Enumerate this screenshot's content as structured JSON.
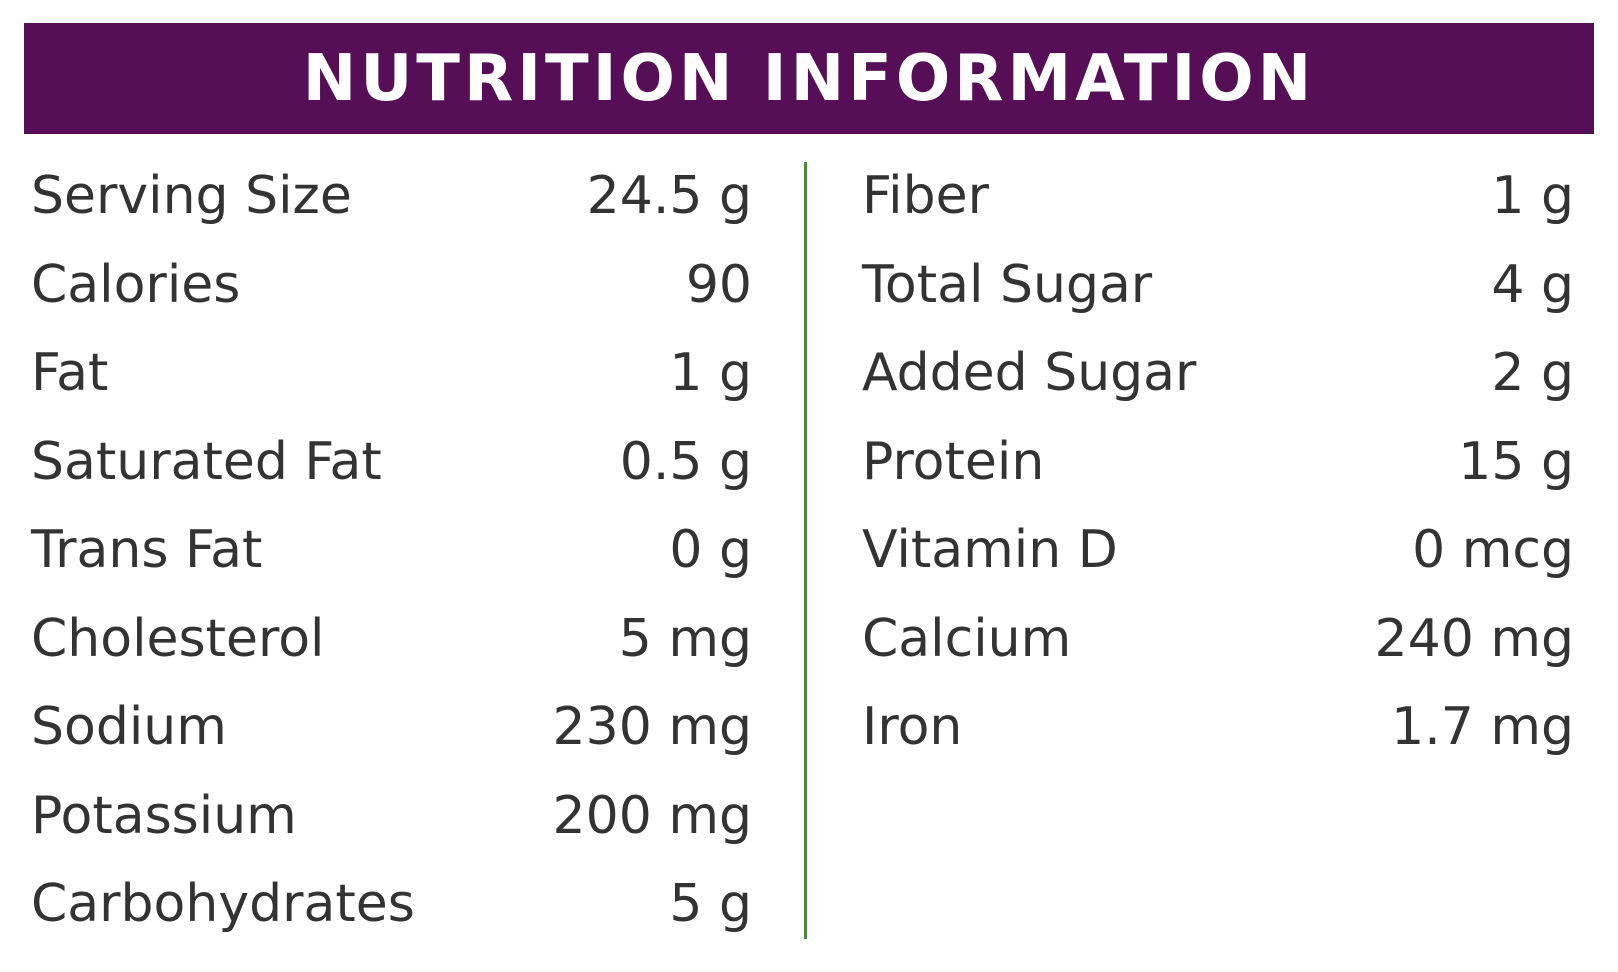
{
  "header": {
    "title": "NUTRITION INFORMATION"
  },
  "table": {
    "left": [
      [
        "Serving Size",
        "24.5 g"
      ],
      [
        "Calories",
        "90"
      ],
      [
        "Fat",
        "1 g"
      ],
      [
        "Saturated Fat",
        "0.5 g"
      ],
      [
        "Trans Fat",
        "0 g"
      ],
      [
        "Cholesterol",
        "5 mg"
      ],
      [
        "Sodium",
        "230 mg"
      ],
      [
        "Potassium",
        "200 mg"
      ],
      [
        "Carbohydrates",
        "5 g"
      ]
    ],
    "right": [
      [
        "Fiber",
        "1 g"
      ],
      [
        "Total Sugar",
        "4 g"
      ],
      [
        "Added Sugar",
        "2 g"
      ],
      [
        "Protein",
        "15 g"
      ],
      [
        "Vitamin D",
        "0 mcg"
      ],
      [
        "Calcium",
        "240 mg"
      ],
      [
        "Iron",
        "1.7 mg"
      ]
    ]
  }
}
